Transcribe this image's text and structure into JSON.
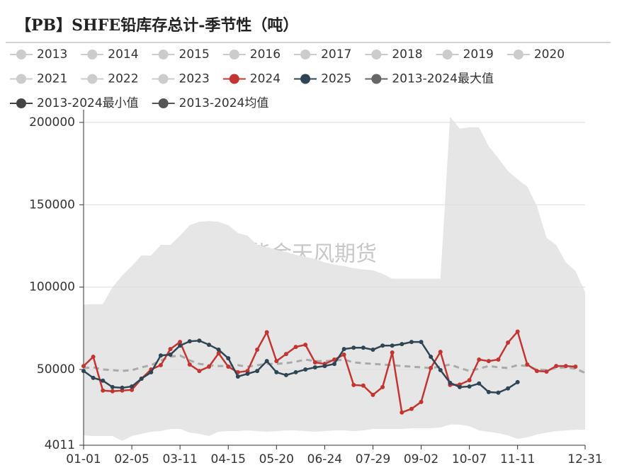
{
  "chart_data": {
    "type": "line",
    "title": "【PB】SHFE铅库存总计-季节性（吨）",
    "watermark": "紫金天风期货",
    "categories": [
      "01-01",
      null,
      null,
      null,
      null,
      "02-05",
      null,
      null,
      null,
      null,
      "03-11",
      null,
      null,
      null,
      null,
      "04-15",
      null,
      null,
      null,
      null,
      "05-20",
      null,
      null,
      null,
      null,
      "06-24",
      null,
      null,
      null,
      null,
      "07-29",
      null,
      null,
      null,
      null,
      "09-02",
      null,
      null,
      null,
      null,
      "10-07",
      null,
      null,
      null,
      null,
      "11-11",
      null,
      null,
      null,
      null,
      null,
      null,
      "12-31"
    ],
    "ylim": [
      4011,
      207700
    ],
    "yticks": [
      4011,
      50000,
      100000,
      150000,
      200000
    ],
    "grid": true,
    "area_color": "#e6e6e6",
    "series": [
      {
        "name": "2013",
        "color": "#cccccc",
        "visible": false
      },
      {
        "name": "2014",
        "color": "#cccccc",
        "visible": false
      },
      {
        "name": "2015",
        "color": "#cccccc",
        "visible": false
      },
      {
        "name": "2016",
        "color": "#cccccc",
        "visible": false
      },
      {
        "name": "2017",
        "color": "#cccccc",
        "visible": false
      },
      {
        "name": "2018",
        "color": "#cccccc",
        "visible": false
      },
      {
        "name": "2019",
        "color": "#cccccc",
        "visible": false
      },
      {
        "name": "2020",
        "color": "#cccccc",
        "visible": false
      },
      {
        "name": "2021",
        "color": "#cccccc",
        "visible": false
      },
      {
        "name": "2022",
        "color": "#cccccc",
        "visible": false
      },
      {
        "name": "2023",
        "color": "#cccccc",
        "visible": false
      },
      {
        "name": "2024",
        "color": "#c23531",
        "values": [
          52100,
          57700,
          37200,
          36800,
          37200,
          37600,
          44400,
          50000,
          52600,
          62400,
          66700,
          53000,
          49100,
          51700,
          59800,
          51700,
          48300,
          49100,
          62000,
          72600,
          55100,
          59400,
          63700,
          65000,
          54300,
          53400,
          56000,
          59000,
          40600,
          40200,
          34600,
          39300,
          60300,
          23900,
          26100,
          30300,
          50900,
          60700,
          40600,
          40800,
          43500,
          56000,
          55100,
          56000,
          66300,
          73000,
          53000,
          49100,
          48700,
          52100,
          52100,
          51700,
          null
        ]
      },
      {
        "name": "2025",
        "color": "#2f4554",
        "values": [
          49100,
          44900,
          43200,
          39300,
          38900,
          39700,
          44400,
          48300,
          58500,
          59000,
          64500,
          67100,
          67500,
          65000,
          62000,
          56800,
          45700,
          47400,
          49100,
          55100,
          48300,
          46600,
          48300,
          50000,
          51300,
          52100,
          53400,
          62400,
          63200,
          63200,
          62000,
          64500,
          64500,
          65400,
          66700,
          66700,
          57700,
          49600,
          41900,
          39300,
          39700,
          41500,
          36300,
          35900,
          38500,
          42300,
          null,
          null,
          null,
          null,
          null,
          null,
          null
        ]
      },
      {
        "name": "2013-2024最大值",
        "color": "#666666",
        "area": true,
        "values": [
          89300,
          89700,
          89700,
          100000,
          107000,
          112800,
          119200,
          119200,
          125600,
          125600,
          131200,
          137600,
          139700,
          140100,
          139700,
          137600,
          132900,
          131200,
          125600,
          124300,
          122600,
          121300,
          119600,
          118400,
          117100,
          115000,
          113700,
          112800,
          111500,
          110700,
          110200,
          108100,
          105100,
          105100,
          105100,
          105100,
          105100,
          105100,
          203400,
          196200,
          197000,
          197000,
          185500,
          178200,
          170500,
          165400,
          161100,
          149200,
          129900,
          125600,
          115000,
          109800,
          97000
        ]
      },
      {
        "name": "2013-2024最小值",
        "color": "#444444",
        "area": true,
        "values": [
          10000,
          9600,
          9600,
          9600,
          6700,
          9600,
          10900,
          12200,
          12600,
          13900,
          13900,
          11700,
          10900,
          9600,
          12200,
          12600,
          12600,
          13000,
          12600,
          12200,
          12600,
          13000,
          13000,
          12600,
          12200,
          12600,
          13000,
          13000,
          12600,
          13000,
          13900,
          13900,
          13900,
          13900,
          14300,
          14300,
          14300,
          14800,
          16600,
          16600,
          15600,
          13000,
          12200,
          11300,
          10000,
          7900,
          8800,
          10500,
          11700,
          12600,
          13000,
          13400,
          13400
        ]
      },
      {
        "name": "2013-2024均值",
        "color": "#555555",
        "dash": true,
        "values": [
          50900,
          51300,
          50000,
          49600,
          49100,
          49600,
          51300,
          52600,
          55500,
          57700,
          58500,
          55500,
          53400,
          52600,
          52100,
          52100,
          52600,
          51700,
          52600,
          53400,
          53400,
          53800,
          54700,
          56000,
          55100,
          55100,
          55500,
          56000,
          54300,
          53800,
          53400,
          53000,
          52600,
          52100,
          51700,
          51300,
          50900,
          51700,
          53000,
          50900,
          49100,
          50500,
          52100,
          51300,
          50900,
          52600,
          52100,
          50000,
          49600,
          50900,
          51300,
          50500,
          47900
        ]
      }
    ]
  }
}
